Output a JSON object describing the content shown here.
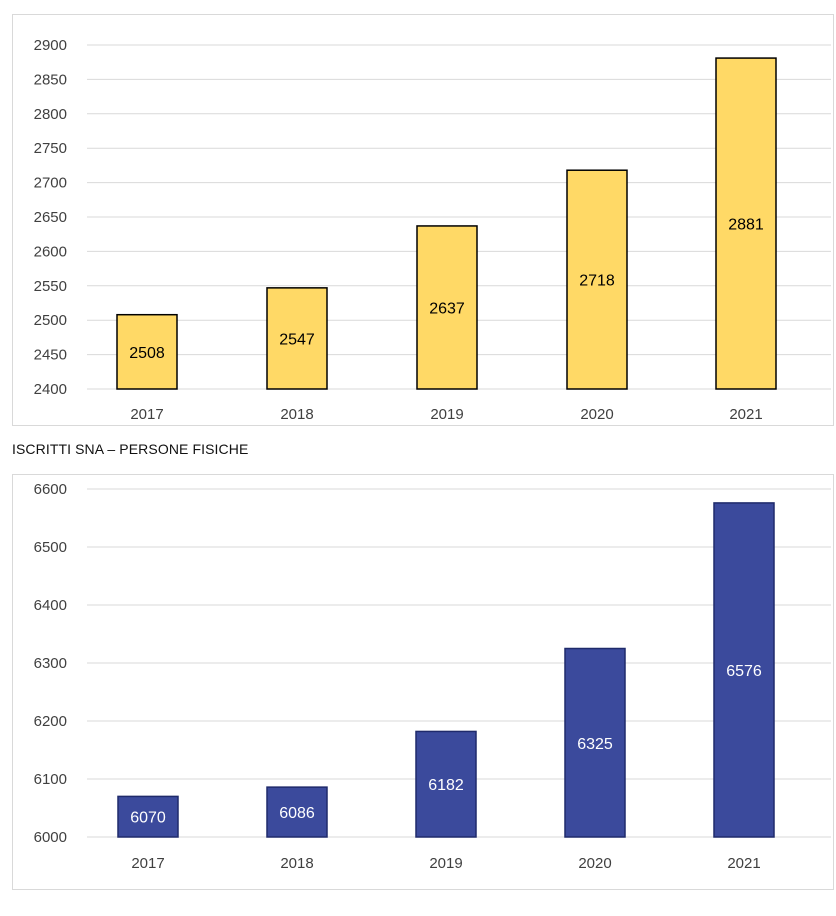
{
  "chart_data": [
    {
      "type": "bar",
      "title": "",
      "categories": [
        "2017",
        "2018",
        "2019",
        "2020",
        "2021"
      ],
      "values": [
        2508,
        2547,
        2637,
        2718,
        2881
      ],
      "ylim": [
        2400,
        2900
      ],
      "yticks": [
        2400,
        2450,
        2500,
        2550,
        2600,
        2650,
        2700,
        2750,
        2800,
        2850,
        2900
      ],
      "grid": true,
      "bar_color": "#FFD966",
      "bar_edge_color": "#000000",
      "label_color": "#000000"
    },
    {
      "type": "bar",
      "title": "ISCRITTI SNA – PERSONE FISICHE",
      "categories": [
        "2017",
        "2018",
        "2019",
        "2020",
        "2021"
      ],
      "values": [
        6070,
        6086,
        6182,
        6325,
        6576
      ],
      "ylim": [
        6000,
        6600
      ],
      "yticks": [
        6000,
        6100,
        6200,
        6300,
        6400,
        6500,
        6600
      ],
      "grid": true,
      "bar_color": "#3B4A9C",
      "bar_edge_color": "#1F2A6B",
      "label_color": "#FFFFFF"
    }
  ]
}
